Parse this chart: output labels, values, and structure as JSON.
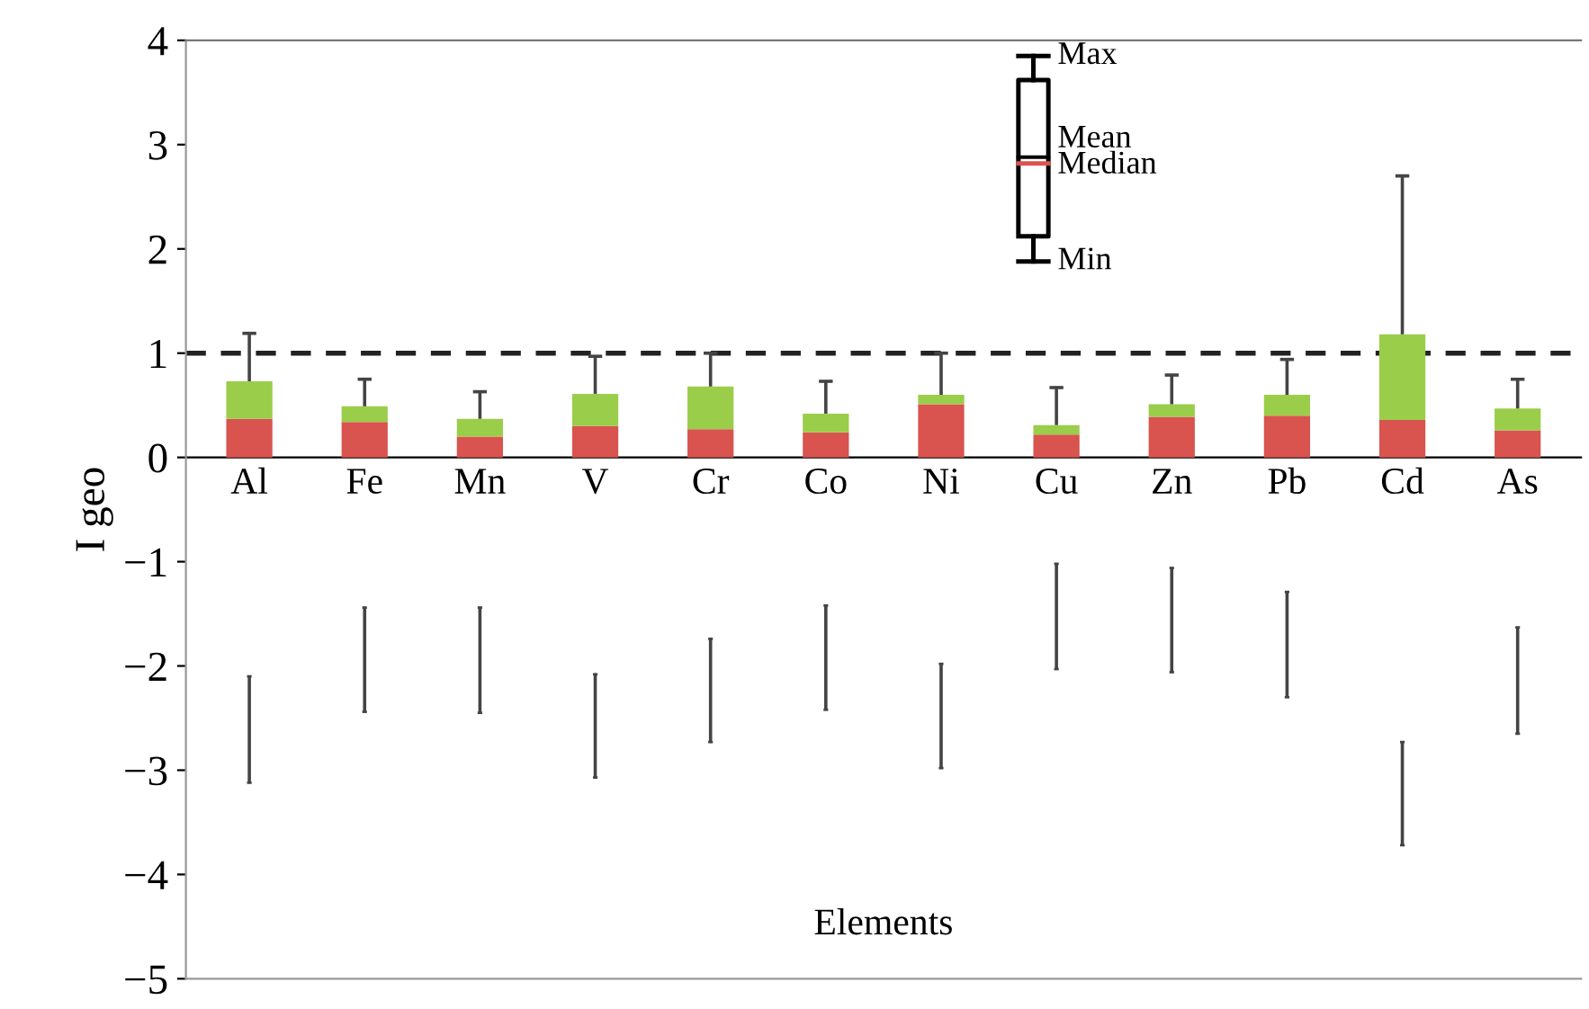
{
  "chart_data": {
    "type": "bar",
    "stacked": true,
    "xlabel": "Elements",
    "ylabel": "I geo",
    "categories": [
      "Al",
      "Fe",
      "Mn",
      "V",
      "Cr",
      "Co",
      "Ni",
      "Cu",
      "Zn",
      "Pb",
      "Cd",
      "As"
    ],
    "series": [
      {
        "color": "#d9534f",
        "values": [
          0.37,
          0.34,
          0.2,
          0.3,
          0.27,
          0.24,
          0.51,
          0.22,
          0.39,
          0.4,
          0.36,
          0.26
        ],
        "errors": [
          [
            -3.12,
            -2.1
          ],
          [
            -2.44,
            -1.44
          ],
          [
            -2.45,
            -1.44
          ],
          [
            -3.07,
            -2.08
          ],
          [
            -2.73,
            -1.74
          ],
          [
            -2.42,
            -1.42
          ],
          [
            -2.98,
            -1.98
          ],
          [
            -2.03,
            -1.02
          ],
          [
            -2.06,
            -1.06
          ],
          [
            -2.3,
            -1.29
          ],
          [
            -3.72,
            -2.73
          ],
          [
            -2.65,
            -1.63
          ]
        ]
      },
      {
        "color": "#9acd4a",
        "values": [
          0.36,
          0.15,
          0.17,
          0.31,
          0.41,
          0.18,
          0.09,
          0.09,
          0.12,
          0.2,
          0.82,
          0.21
        ],
        "errors": [
          [
            0.73,
            1.19
          ],
          [
            0.49,
            0.75
          ],
          [
            0.37,
            0.63
          ],
          [
            0.61,
            0.97
          ],
          [
            0.68,
            1.0
          ],
          [
            0.42,
            0.73
          ],
          [
            0.6,
            1.0
          ],
          [
            0.31,
            0.67
          ],
          [
            0.51,
            0.79
          ],
          [
            0.6,
            0.94
          ],
          [
            1.18,
            2.7
          ],
          [
            0.47,
            0.75
          ]
        ]
      }
    ],
    "ylim": [
      -5,
      4
    ],
    "yticks": [
      -5,
      -4,
      -3,
      -2,
      -1,
      0,
      1,
      2,
      3,
      4
    ],
    "ref_lines": [
      {
        "axis": "y",
        "value": 1,
        "color": "#222222",
        "line_style": "dashed"
      }
    ],
    "annotations": [
      "Max",
      "Mean",
      "Median",
      "Min"
    ],
    "grid": false
  }
}
